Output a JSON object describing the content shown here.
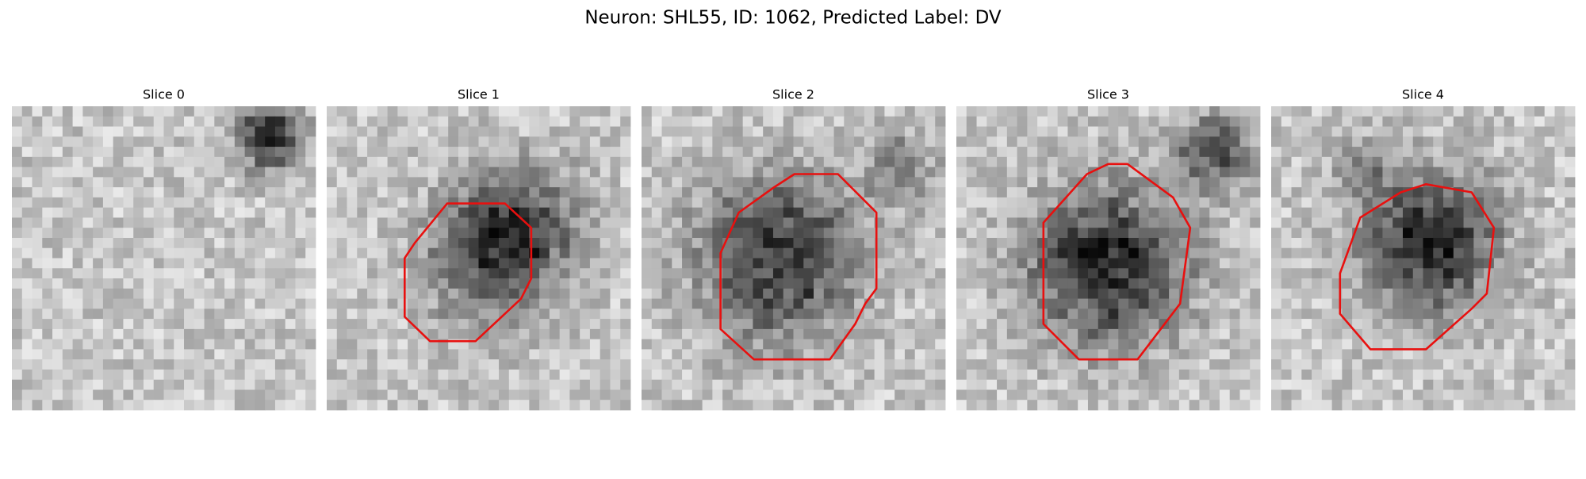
{
  "title": "Neuron: SHL55, ID: 1062, Predicted Label: DV",
  "panels": [
    {
      "title": "Slice 0"
    },
    {
      "title": "Slice 1"
    },
    {
      "title": "Slice 2"
    },
    {
      "title": "Slice 3"
    },
    {
      "title": "Slice 4"
    }
  ]
}
